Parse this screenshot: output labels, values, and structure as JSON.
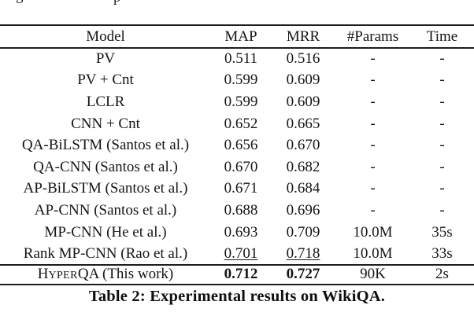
{
  "page": {
    "background": "#ffffff",
    "text_color": "#151515",
    "rule_color": "#1c1c1c"
  },
  "clipped_text_fragments": [
    {
      "char": "g"
    },
    {
      "char": "p"
    }
  ],
  "table": {
    "columns": [
      "Model",
      "MAP",
      "MRR",
      "#Params",
      "Time"
    ],
    "rows": [
      {
        "model": "PV",
        "map": "0.511",
        "mrr": "0.516",
        "params": "-",
        "time": "-"
      },
      {
        "model": "PV + Cnt",
        "map": "0.599",
        "mrr": "0.609",
        "params": "-",
        "time": "-"
      },
      {
        "model": "LCLR",
        "map": "0.599",
        "mrr": "0.609",
        "params": "-",
        "time": "-"
      },
      {
        "model": "CNN + Cnt",
        "map": "0.652",
        "mrr": "0.665",
        "params": "-",
        "time": "-"
      },
      {
        "model": "QA-BiLSTM (Santos et al.)",
        "map": "0.656",
        "mrr": "0.670",
        "params": "-",
        "time": "-"
      },
      {
        "model": "QA-CNN (Santos et al.)",
        "map": "0.670",
        "mrr": "0.682",
        "params": "-",
        "time": "-"
      },
      {
        "model": "AP-BiLSTM (Santos et al.)",
        "map": "0.671",
        "mrr": "0.684",
        "params": "-",
        "time": "-"
      },
      {
        "model": "AP-CNN (Santos et al.)",
        "map": "0.688",
        "mrr": "0.696",
        "params": "-",
        "time": "-"
      },
      {
        "model": "MP-CNN (He et al.)",
        "map": "0.693",
        "mrr": "0.709",
        "params": "10.0M",
        "time": "35s"
      },
      {
        "model": "Rank MP-CNN (Rao et al.)",
        "map": "0.701",
        "mrr": "0.718",
        "params": "10.0M",
        "time": "33s",
        "underline_scores": true
      }
    ],
    "highlight_row": {
      "model_parts": {
        "pre": "H",
        "smallcaps": "YPER",
        "post": "QA (This work)"
      },
      "map": "0.712",
      "mrr": "0.727",
      "params": "90K",
      "time": "2s",
      "bold_scores": true
    },
    "caption": "Table 2: Experimental results on WikiQA."
  }
}
